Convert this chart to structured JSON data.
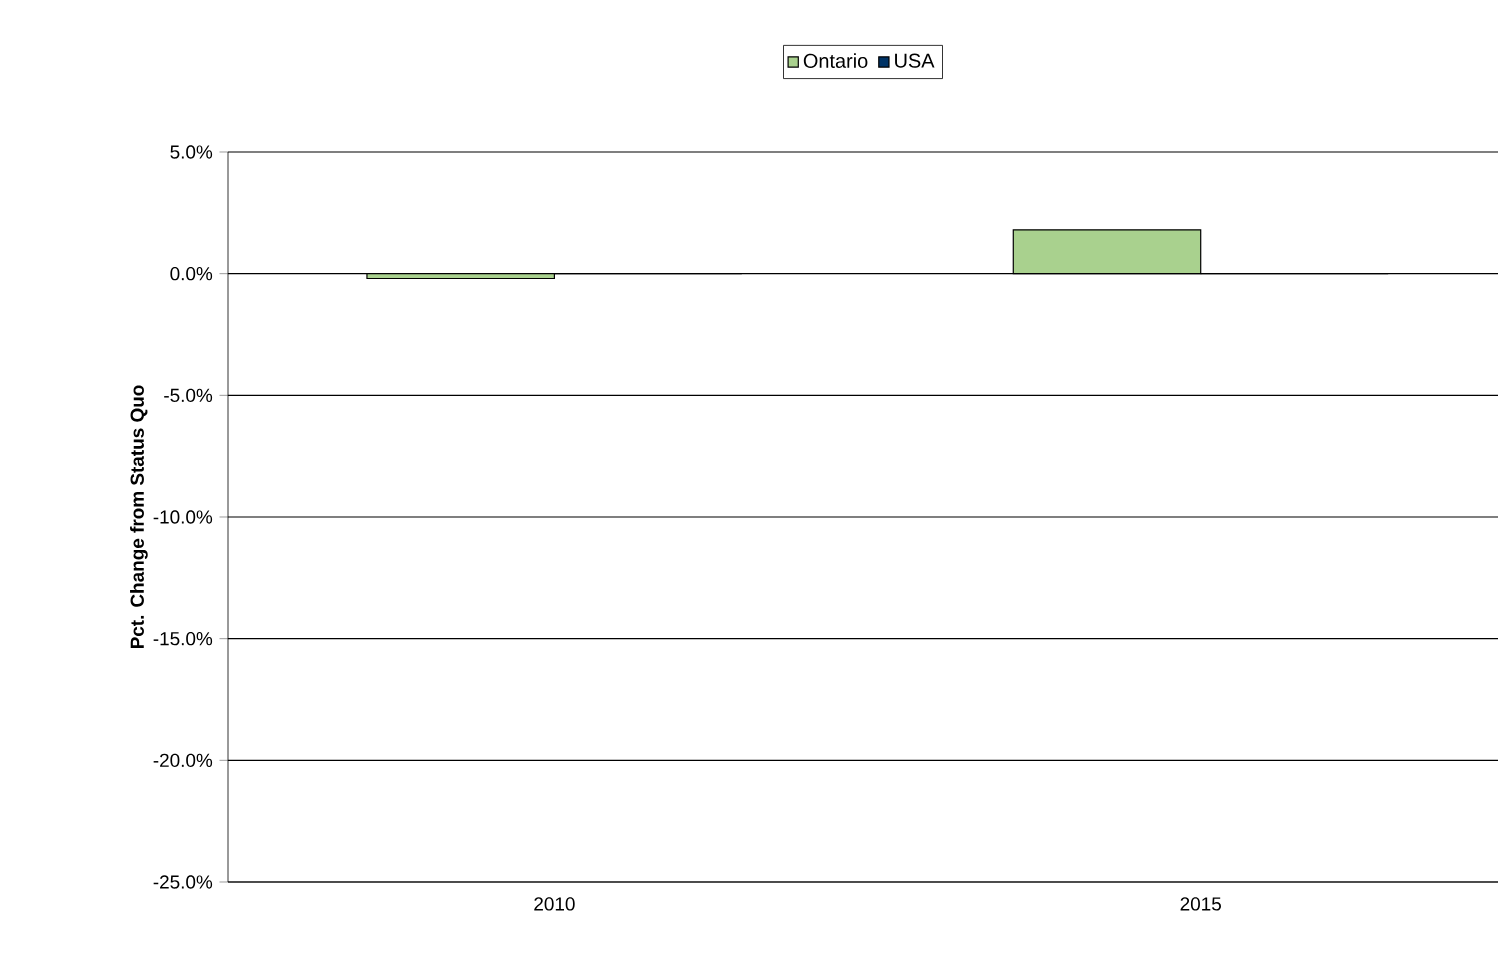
{
  "chart_data": {
    "type": "bar",
    "ylabel": "Pct. Change from Status Quo",
    "categories": [
      "2010",
      "2015"
    ],
    "series": [
      {
        "name": "Ontario",
        "color": "#a9d18e",
        "values": [
          -0.2,
          1.8
        ]
      },
      {
        "name": "USA",
        "color": "#003366",
        "values": [
          0,
          0
        ]
      }
    ],
    "ylim": [
      -25,
      5
    ],
    "yticks": [
      {
        "value": -25,
        "label": "-25.0%"
      },
      {
        "value": -20,
        "label": "-20.0%"
      },
      {
        "value": -15,
        "label": "-15.0%"
      },
      {
        "value": -10,
        "label": "-10.0%"
      },
      {
        "value": -5,
        "label": "-5.0%"
      },
      {
        "value": 0,
        "label": "0.0%"
      },
      {
        "value": 5,
        "label": "5.0%"
      }
    ],
    "grid": "y",
    "legend": "top"
  }
}
